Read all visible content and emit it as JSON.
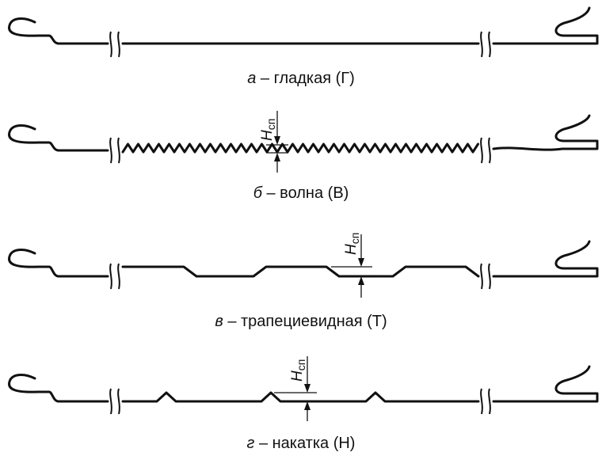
{
  "panels": [
    {
      "letter": "а",
      "caption": " – гладкая (Г)",
      "dim_label": "",
      "dim_sub": ""
    },
    {
      "letter": "б",
      "caption": " – волна (В)",
      "dim_label": "H",
      "dim_sub": "сп"
    },
    {
      "letter": "в",
      "caption": " – трапециевидная (Т)",
      "dim_label": "H",
      "dim_sub": "сп"
    },
    {
      "letter": "г",
      "caption": " – накатка (Н)",
      "dim_label": "H",
      "dim_sub": "сп"
    }
  ]
}
